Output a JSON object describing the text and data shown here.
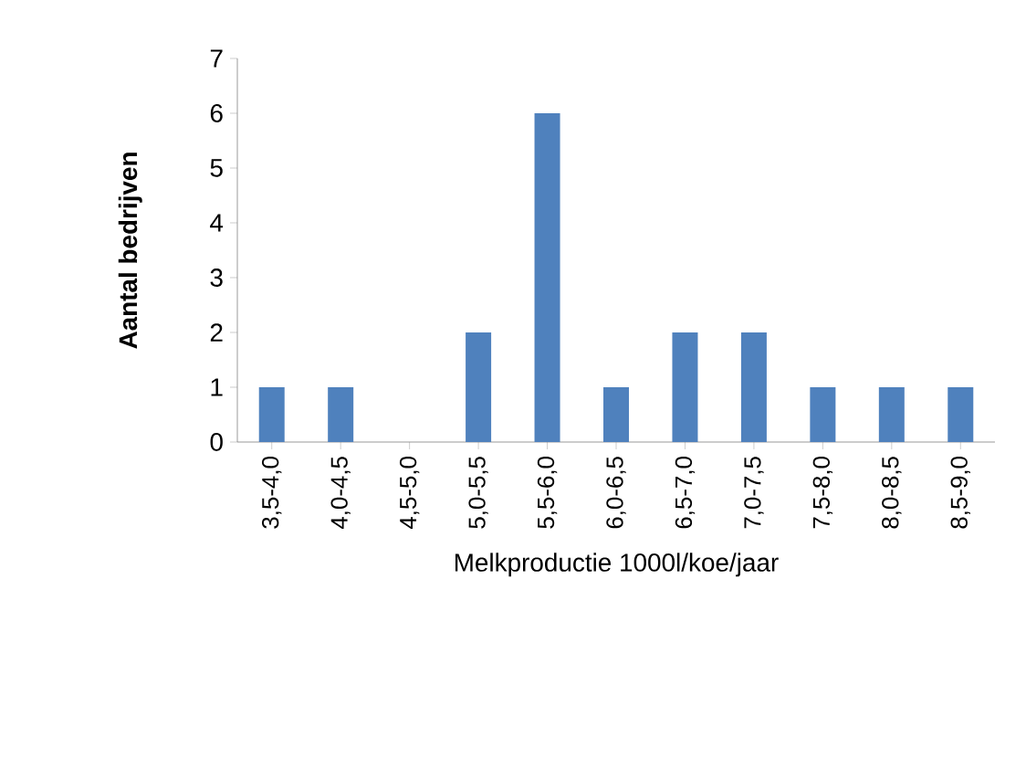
{
  "chart_data": {
    "type": "bar",
    "xlabel": "Melkproductie 1000l/koe/jaar",
    "ylabel": "Aantal bedrijven",
    "categories": [
      "3,5-4,0",
      "4,0-4,5",
      "4,5-5,0",
      "5,0-5,5",
      "5,5-6,0",
      "6,0-6,5",
      "6,5-7,0",
      "7,0-7,5",
      "7,5-8,0",
      "8,0-8,5",
      "8,5-9,0"
    ],
    "values": [
      1,
      1,
      0,
      2,
      6,
      1,
      2,
      2,
      1,
      1,
      1
    ],
    "color": "#4f81bd",
    "ylim": [
      0,
      7
    ],
    "yticks": [
      0,
      1,
      2,
      3,
      4,
      5,
      6,
      7
    ],
    "grid": false
  }
}
